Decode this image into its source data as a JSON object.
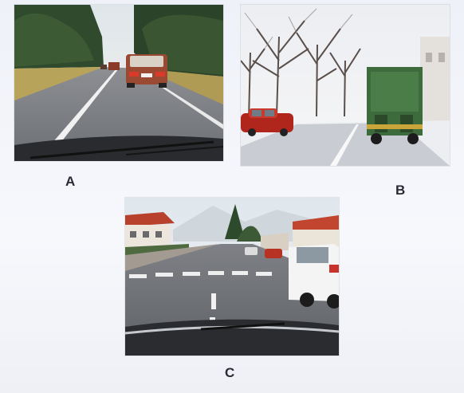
{
  "captions": {
    "a": "A",
    "b": "B",
    "c": "C"
  },
  "photos": [
    {
      "id": "a",
      "icon": "road-with-car-ahead-photo"
    },
    {
      "id": "b",
      "icon": "tree-lined-street-with-truck-photo"
    },
    {
      "id": "c",
      "icon": "town-street-with-crosswalk-photo"
    }
  ],
  "colors": {
    "background": "#f4f6fb",
    "caption": "#2a2a33"
  }
}
